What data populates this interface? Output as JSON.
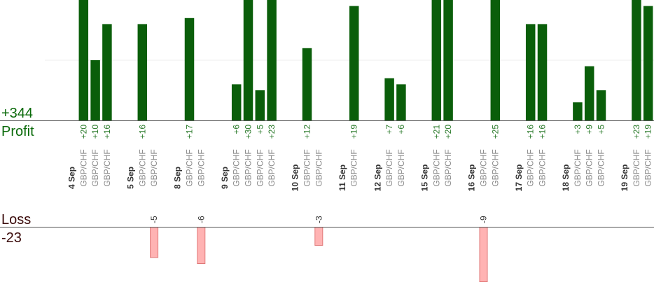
{
  "summary": {
    "profit_total": "+344",
    "profit_label": "Profit",
    "loss_label": "Loss",
    "loss_total": "-23"
  },
  "colors": {
    "profit_bar": "#0a5e0a",
    "loss_bar_fill": "#ffb3b3",
    "loss_bar_stroke": "#e07878",
    "axis": "#555555",
    "gridline": "#ececec"
  },
  "chart_data": {
    "type": "bar",
    "profit_axis_range": [
      0,
      20
    ],
    "loss_axis_range": [
      0,
      9
    ],
    "days": [
      {
        "date": "4 Sep",
        "trades": [
          {
            "pair": "GBP/CHF",
            "value": 20
          },
          {
            "pair": "GBP/CHF",
            "value": 10
          },
          {
            "pair": "GBP/CHF",
            "value": 16
          }
        ]
      },
      {
        "date": "5 Sep",
        "trades": [
          {
            "pair": "GBP/CHF",
            "value": 16
          },
          {
            "pair": "GBP/CHF",
            "value": -5
          }
        ]
      },
      {
        "date": "8 Sep",
        "trades": [
          {
            "pair": "GBP/CHF",
            "value": 17
          },
          {
            "pair": "GBP/CHF",
            "value": -6
          }
        ]
      },
      {
        "date": "9 Sep",
        "trades": [
          {
            "pair": "GBP/CHF",
            "value": 6
          },
          {
            "pair": "GBP/CHF",
            "value": 30
          },
          {
            "pair": "GBP/CHF",
            "value": 5
          },
          {
            "pair": "GBP/CHF",
            "value": 23
          }
        ]
      },
      {
        "date": "10 Sep",
        "trades": [
          {
            "pair": "GBP/CHF",
            "value": 12
          },
          {
            "pair": "GBP/CHF",
            "value": -3
          }
        ]
      },
      {
        "date": "11 Sep",
        "trades": [
          {
            "pair": "GBP/CHF",
            "value": 19
          }
        ]
      },
      {
        "date": "12 Sep",
        "trades": [
          {
            "pair": "GBP/CHF",
            "value": 7
          },
          {
            "pair": "GBP/CHF",
            "value": 6
          }
        ]
      },
      {
        "date": "15 Sep",
        "trades": [
          {
            "pair": "GBP/CHF",
            "value": 21
          },
          {
            "pair": "GBP/CHF",
            "value": 20
          }
        ]
      },
      {
        "date": "16 Sep",
        "trades": [
          {
            "pair": "GBP/CHF",
            "value": -9
          },
          {
            "pair": "GBP/CHF",
            "value": 25
          }
        ]
      },
      {
        "date": "17 Sep",
        "trades": [
          {
            "pair": "GBP/CHF",
            "value": 16
          },
          {
            "pair": "GBP/CHF",
            "value": 16
          }
        ]
      },
      {
        "date": "18 Sep",
        "trades": [
          {
            "pair": "GBP/CHF",
            "value": 3
          },
          {
            "pair": "GBP/CHF",
            "value": 9
          },
          {
            "pair": "GBP/CHF",
            "value": 5
          }
        ]
      },
      {
        "date": "19 Sep",
        "trades": [
          {
            "pair": "GBP/CHF",
            "value": 23
          },
          {
            "pair": "GBP/CHF",
            "value": 19
          }
        ]
      }
    ]
  }
}
